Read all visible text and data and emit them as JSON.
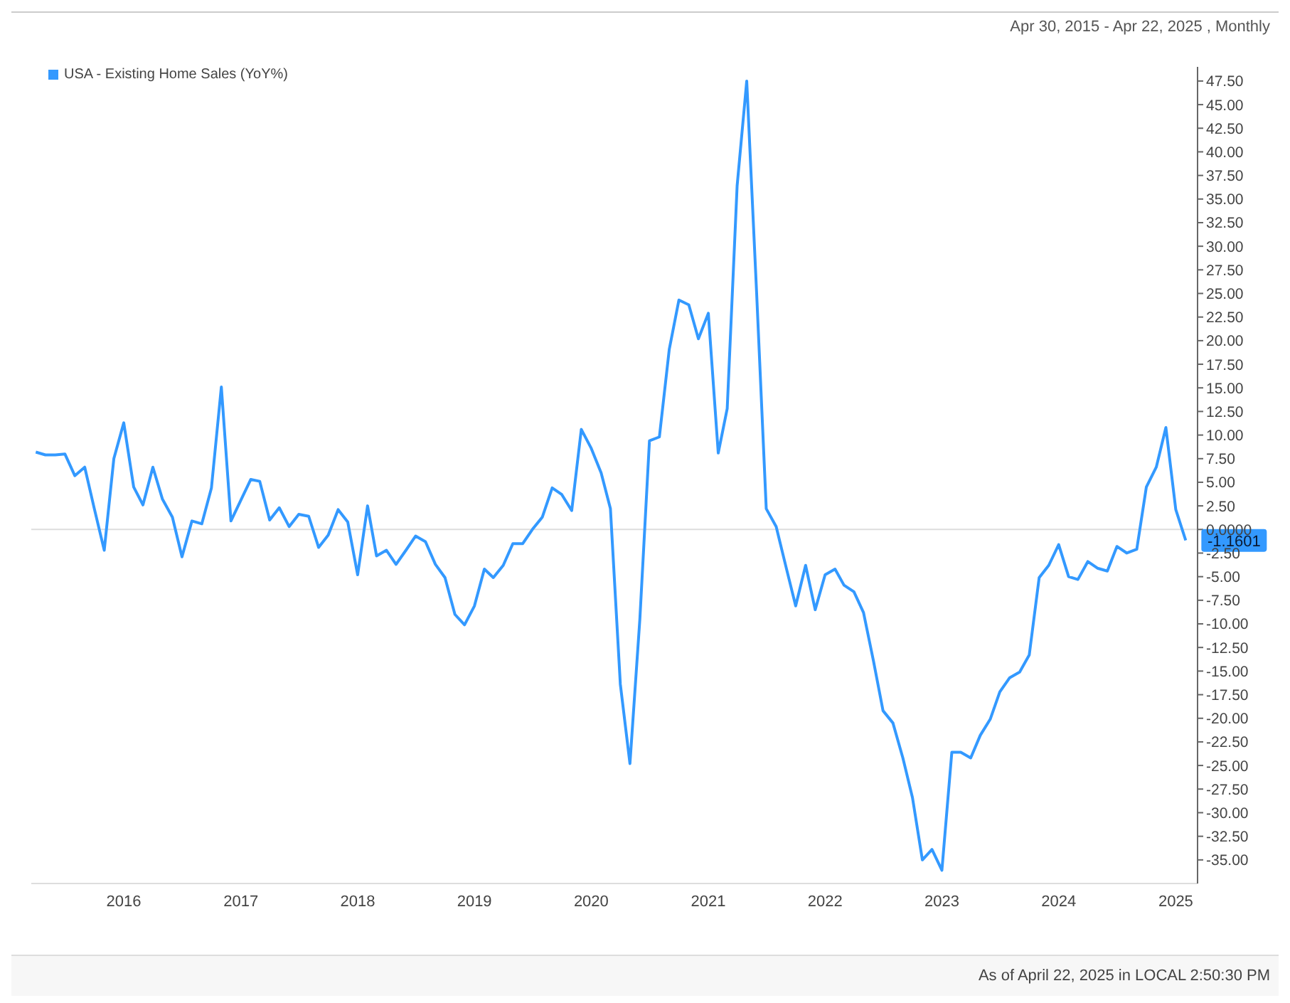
{
  "chart_data": {
    "type": "line",
    "subtitle": "Apr 30, 2015 - Apr 22, 2025 , Monthly",
    "x": [
      "2015-04",
      "2015-05",
      "2015-06",
      "2015-07",
      "2015-08",
      "2015-09",
      "2015-10",
      "2015-11",
      "2015-12",
      "2016-01",
      "2016-02",
      "2016-03",
      "2016-04",
      "2016-05",
      "2016-06",
      "2016-07",
      "2016-08",
      "2016-09",
      "2016-10",
      "2016-11",
      "2016-12",
      "2017-01",
      "2017-02",
      "2017-03",
      "2017-04",
      "2017-05",
      "2017-06",
      "2017-07",
      "2017-08",
      "2017-09",
      "2017-10",
      "2017-11",
      "2017-12",
      "2018-01",
      "2018-02",
      "2018-03",
      "2018-04",
      "2018-05",
      "2018-06",
      "2018-07",
      "2018-08",
      "2018-09",
      "2018-10",
      "2018-11",
      "2018-12",
      "2019-01",
      "2019-02",
      "2019-03",
      "2019-04",
      "2019-05",
      "2019-06",
      "2019-07",
      "2019-08",
      "2019-09",
      "2019-10",
      "2019-11",
      "2019-12",
      "2020-01",
      "2020-02",
      "2020-03",
      "2020-04",
      "2020-05",
      "2020-06",
      "2020-07",
      "2020-08",
      "2020-09",
      "2020-10",
      "2020-11",
      "2020-12",
      "2021-01",
      "2021-02",
      "2021-03",
      "2021-04",
      "2021-05",
      "2021-06",
      "2021-07",
      "2021-08",
      "2021-09",
      "2021-10",
      "2021-11",
      "2021-12",
      "2022-01",
      "2022-02",
      "2022-03",
      "2022-04",
      "2022-05",
      "2022-06",
      "2022-07",
      "2022-08",
      "2022-09",
      "2022-10",
      "2022-11",
      "2022-12",
      "2023-01",
      "2023-02",
      "2023-03",
      "2023-04",
      "2023-05",
      "2023-06",
      "2023-07",
      "2023-08",
      "2023-09",
      "2023-10",
      "2023-11",
      "2023-12",
      "2024-01",
      "2024-02",
      "2024-03",
      "2024-04",
      "2024-05",
      "2024-06",
      "2024-07",
      "2024-08",
      "2024-09",
      "2024-10",
      "2024-11",
      "2024-12",
      "2025-01",
      "2025-02"
    ],
    "series": [
      {
        "name": "USA - Existing Home Sales (YoY%)",
        "color": "#3399ff",
        "values": [
          8.2,
          7.9,
          7.9,
          8.0,
          5.7,
          6.6,
          2.2,
          -2.2,
          7.5,
          11.3,
          4.5,
          2.6,
          6.6,
          3.2,
          1.3,
          -2.9,
          0.9,
          0.6,
          4.4,
          15.1,
          0.9,
          3.1,
          5.3,
          5.1,
          1.0,
          2.3,
          0.3,
          1.6,
          1.4,
          -1.9,
          -0.6,
          2.1,
          0.8,
          -4.8,
          2.5,
          -2.8,
          -2.2,
          -3.7,
          -2.2,
          -0.7,
          -1.3,
          -3.7,
          -5.1,
          -9.0,
          -10.1,
          -8.1,
          -4.2,
          -5.1,
          -3.8,
          -1.5,
          -1.5,
          0.0,
          1.3,
          4.4,
          3.7,
          2.0,
          10.6,
          8.6,
          6.0,
          2.2,
          -16.4,
          -24.8,
          -9.5,
          9.4,
          9.8,
          19.1,
          24.3,
          23.8,
          20.2,
          22.9,
          8.1,
          12.8,
          36.4,
          47.5,
          25.0,
          2.2,
          0.3,
          -4.0,
          -8.1,
          -3.8,
          -8.5,
          -4.8,
          -4.2,
          -5.9,
          -6.6,
          -8.8,
          -13.9,
          -19.2,
          -20.5,
          -24.2,
          -28.4,
          -35.0,
          -33.9,
          -36.1,
          -23.6,
          -23.6,
          -24.2,
          -21.8,
          -20.1,
          -17.2,
          -15.7,
          -15.1,
          -13.3,
          -5.1,
          -3.8,
          -1.6,
          -5.0,
          -5.3,
          -3.4,
          -4.1,
          -4.4,
          -1.8,
          -2.5,
          -2.1,
          4.5,
          6.6,
          10.8,
          2.1,
          -1.1601
        ]
      }
    ],
    "xlim": [
      "2015-03-18",
      "2025-03-10"
    ],
    "xticks": [
      "2016",
      "2017",
      "2018",
      "2019",
      "2020",
      "2021",
      "2022",
      "2023",
      "2024",
      "2025"
    ],
    "ylim": [
      -37.5,
      49
    ],
    "yticks": [
      {
        "value": 47.5,
        "label": "47.50"
      },
      {
        "value": 45,
        "label": "45.00"
      },
      {
        "value": 42.5,
        "label": "42.50"
      },
      {
        "value": 40,
        "label": "40.00"
      },
      {
        "value": 37.5,
        "label": "37.50"
      },
      {
        "value": 35,
        "label": "35.00"
      },
      {
        "value": 32.5,
        "label": "32.50"
      },
      {
        "value": 30,
        "label": "30.00"
      },
      {
        "value": 27.5,
        "label": "27.50"
      },
      {
        "value": 25,
        "label": "25.00"
      },
      {
        "value": 22.5,
        "label": "22.50"
      },
      {
        "value": 20,
        "label": "20.00"
      },
      {
        "value": 17.5,
        "label": "17.50"
      },
      {
        "value": 15,
        "label": "15.00"
      },
      {
        "value": 12.5,
        "label": "12.50"
      },
      {
        "value": 10,
        "label": "10.00"
      },
      {
        "value": 7.5,
        "label": "7.50"
      },
      {
        "value": 5,
        "label": "5.00"
      },
      {
        "value": 2.5,
        "label": "2.50"
      },
      {
        "value": 0,
        "label": "0.0000"
      },
      {
        "value": -2.5,
        "label": "-2.50"
      },
      {
        "value": -5,
        "label": "-5.00"
      },
      {
        "value": -7.5,
        "label": "-7.50"
      },
      {
        "value": -10,
        "label": "-10.00"
      },
      {
        "value": -12.5,
        "label": "-12.50"
      },
      {
        "value": -15,
        "label": "-15.00"
      },
      {
        "value": -17.5,
        "label": "-17.50"
      },
      {
        "value": -20,
        "label": "-20.00"
      },
      {
        "value": -22.5,
        "label": "-22.50"
      },
      {
        "value": -25,
        "label": "-25.00"
      },
      {
        "value": -27.5,
        "label": "-27.50"
      },
      {
        "value": -30,
        "label": "-30.00"
      },
      {
        "value": -32.5,
        "label": "-32.50"
      },
      {
        "value": -35,
        "label": "-35.00"
      }
    ],
    "ref_lines": [
      {
        "axis": "y",
        "value": 0,
        "color": "#dddddd"
      }
    ],
    "annotations": [
      {
        "text": "-1.1601",
        "x": "2025-02",
        "y": -1.1601
      },
      "As of April 22, 2025 in LOCAL 2:50:30 PM"
    ],
    "legend": "top left",
    "marker": "none",
    "line_style": "solid"
  }
}
